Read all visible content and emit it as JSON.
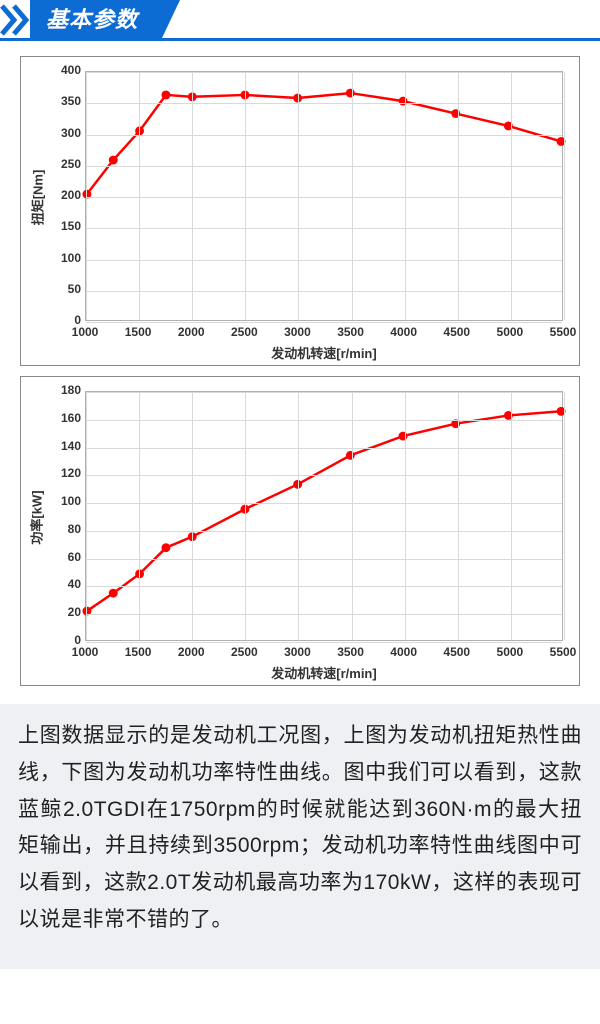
{
  "header": {
    "title": "基本参数",
    "banner_color": "#0c6cd4",
    "underline_color": "#0c6cd4",
    "text_color": "#ffffff"
  },
  "chart1": {
    "type": "line",
    "y_label": "扭矩[Nm]",
    "x_label": "发动机转速[r/min]",
    "x_ticks": [
      1000,
      1500,
      2000,
      2500,
      3000,
      3500,
      4000,
      4500,
      5000,
      5500
    ],
    "y_ticks": [
      0,
      50,
      100,
      150,
      200,
      250,
      300,
      350,
      400
    ],
    "xlim": [
      1000,
      5500
    ],
    "ylim": [
      0,
      400
    ],
    "x_values": [
      1000,
      1250,
      1500,
      1750,
      2000,
      2500,
      3000,
      3500,
      4000,
      4500,
      5000,
      5500
    ],
    "y_values": [
      203,
      258,
      305,
      363,
      360,
      363,
      358,
      366,
      353,
      333,
      313,
      288
    ],
    "line_color": "#ff0000",
    "marker_color": "#ff0000",
    "line_width": 2.5,
    "marker_size": 4.5,
    "grid_color": "#d9d9d9",
    "tick_fontsize": 12,
    "label_fontsize": 13,
    "background": "#ffffff"
  },
  "chart2": {
    "type": "line",
    "y_label": "功率[kW]",
    "x_label": "发动机转速[r/min]",
    "x_ticks": [
      1000,
      1500,
      2000,
      2500,
      3000,
      3500,
      4000,
      4500,
      5000,
      5500
    ],
    "y_ticks": [
      0,
      20,
      40,
      60,
      80,
      100,
      120,
      140,
      160,
      180
    ],
    "xlim": [
      1000,
      5500
    ],
    "ylim": [
      0,
      180
    ],
    "x_values": [
      1000,
      1250,
      1500,
      1750,
      2000,
      2500,
      3000,
      3500,
      4000,
      4500,
      5000,
      5500
    ],
    "y_values": [
      21,
      34,
      48,
      67,
      75,
      95,
      113,
      134,
      148,
      157,
      163,
      166
    ],
    "line_color": "#ff0000",
    "marker_color": "#ff0000",
    "line_width": 2.5,
    "marker_size": 4.5,
    "grid_color": "#d9d9d9",
    "tick_fontsize": 12,
    "label_fontsize": 13,
    "background": "#ffffff"
  },
  "body_text": "上图数据显示的是发动机工况图，上图为发动机扭矩热性曲线，下图为发动机功率特性曲线。图中我们可以看到，这款蓝鲸2.0TGDI在1750rpm的时候就能达到360N·m的最大扭矩输出，并且持续到3500rpm；发动机功率特性曲线图中可以看到，这款2.0T发动机最高功率为170kW，这样的表现可以说是非常不错的了。",
  "body_style": {
    "background": "#eef0f3",
    "fontsize": 21,
    "color": "#222222",
    "line_height": 1.75
  }
}
